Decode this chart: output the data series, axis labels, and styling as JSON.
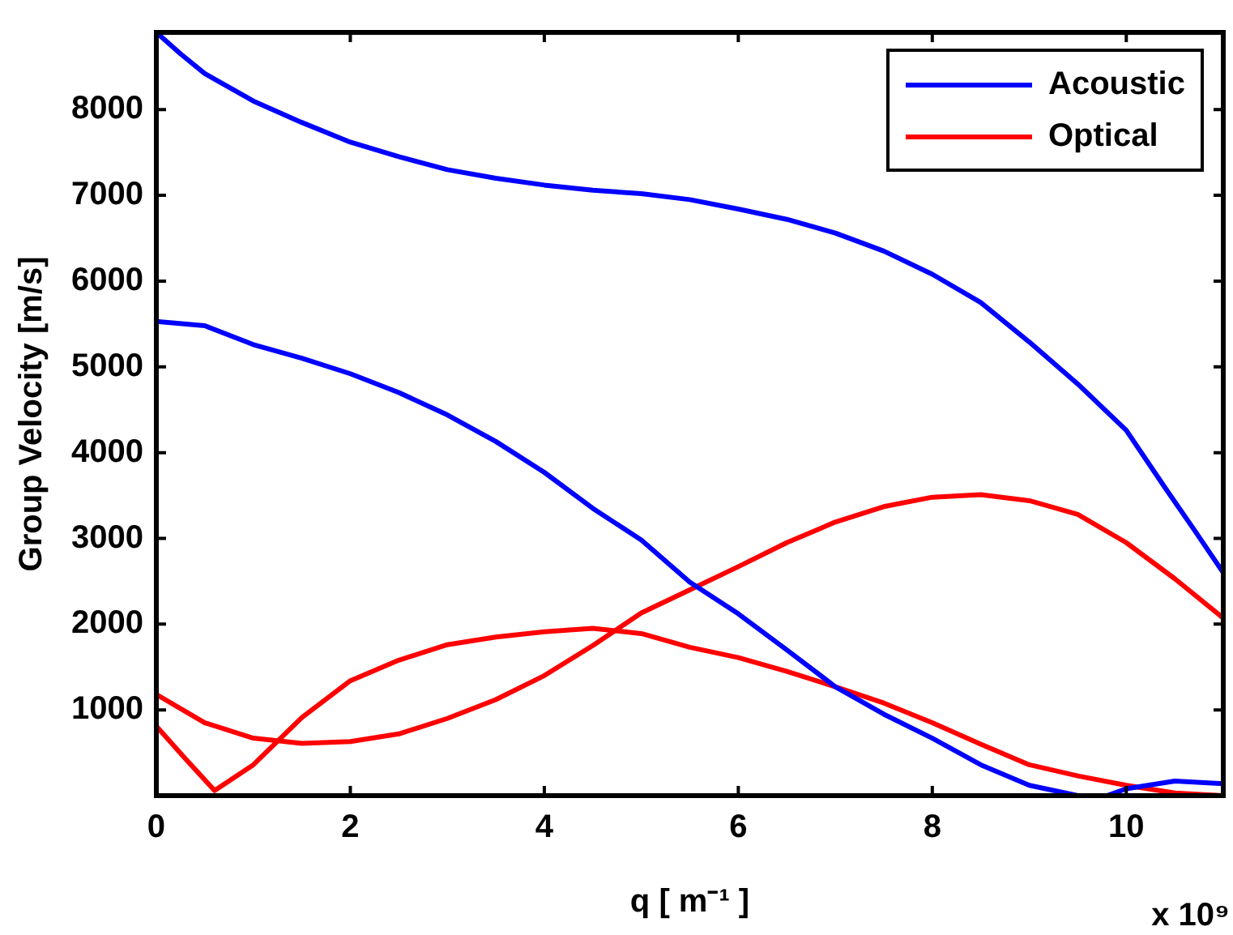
{
  "chart_data": {
    "type": "line",
    "xlabel": "q [ m⁻¹ ]",
    "ylabel": "Group Velocity [m/s]",
    "annotations": [
      "x 10⁹"
    ],
    "xlim": [
      0,
      11
    ],
    "xticks": [
      0,
      2,
      4,
      6,
      8,
      10
    ],
    "ylim": [
      0,
      8900
    ],
    "yticks": [
      1000,
      2000,
      3000,
      4000,
      5000,
      6000,
      7000,
      8000
    ],
    "grid": false,
    "legend": "top right",
    "line_style": "solid",
    "marker": "none",
    "series": [
      {
        "name": "Acoustic",
        "color": "#0000ff",
        "x": [
          0,
          0.25,
          0.5,
          1,
          1.5,
          2,
          2.5,
          3,
          3.5,
          4,
          4.5,
          5,
          5.5,
          6,
          6.5,
          7,
          7.5,
          8,
          8.5,
          9,
          9.5,
          10,
          10.4,
          10.7,
          11
        ],
        "values": [
          8900,
          8650,
          8420,
          8100,
          7850,
          7620,
          7450,
          7300,
          7200,
          7120,
          7060,
          7020,
          6950,
          6840,
          6720,
          6560,
          6350,
          6080,
          5750,
          5290,
          4800,
          4260,
          3590,
          3100,
          2600
        ]
      },
      {
        "color": "#0000ff",
        "x": [
          0,
          0.5,
          1,
          1.5,
          2,
          2.5,
          3,
          3.5,
          4,
          4.5,
          5,
          5.5,
          6,
          6.5,
          7,
          7.5,
          8,
          8.5,
          9,
          9.5,
          9.8,
          10,
          10.5,
          11
        ],
        "values": [
          5530,
          5480,
          5260,
          5100,
          4920,
          4700,
          4440,
          4130,
          3770,
          3350,
          2980,
          2490,
          2120,
          1700,
          1270,
          950,
          670,
          360,
          120,
          0,
          0,
          80,
          170,
          140
        ]
      },
      {
        "name": "Optical",
        "color": "#ff0000",
        "x": [
          0,
          0.3,
          0.6,
          1,
          1.5,
          2,
          2.5,
          3,
          3.5,
          4,
          4.5,
          5,
          5.5,
          6,
          6.5,
          7,
          7.5,
          8,
          8.5,
          9,
          9.5,
          10,
          10.5,
          11
        ],
        "values": [
          810,
          430,
          60,
          360,
          910,
          1340,
          1580,
          1760,
          1850,
          1910,
          1950,
          1890,
          1730,
          1610,
          1450,
          1270,
          1080,
          850,
          600,
          360,
          230,
          120,
          30,
          0
        ]
      },
      {
        "color": "#ff0000",
        "x": [
          0,
          0.5,
          1,
          1.5,
          2,
          2.5,
          3,
          3.5,
          4,
          4.5,
          5,
          5.5,
          6,
          6.5,
          7,
          7.5,
          8,
          8.5,
          9,
          9.5,
          10,
          10.5,
          11
        ],
        "values": [
          1180,
          850,
          670,
          610,
          630,
          720,
          900,
          1120,
          1400,
          1750,
          2130,
          2400,
          2670,
          2950,
          3190,
          3370,
          3480,
          3510,
          3440,
          3280,
          2950,
          2530,
          2070
        ]
      }
    ]
  }
}
